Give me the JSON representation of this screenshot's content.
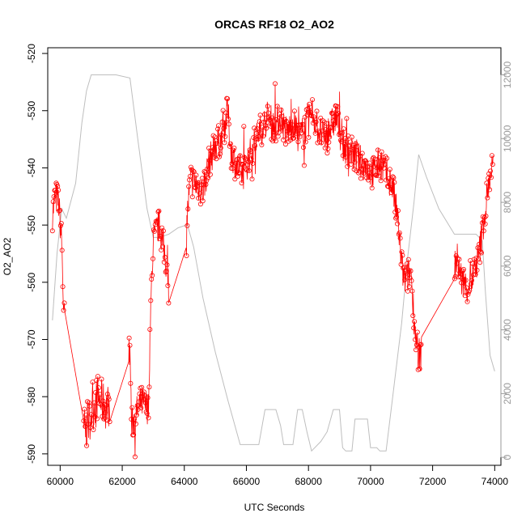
{
  "chart_data": {
    "type": "line",
    "title": "ORCAS RF18 O2_AO2",
    "xlabel": "UTC Seconds",
    "ylabel": "O2_AO2",
    "xlim": [
      59600,
      74200
    ],
    "ylim": [
      -592,
      -519
    ],
    "y2lim": [
      -250,
      12850
    ],
    "x_ticks": [
      60000,
      62000,
      64000,
      66000,
      68000,
      70000,
      72000,
      74000
    ],
    "y_ticks": [
      -590,
      -580,
      -570,
      -560,
      -550,
      -540,
      -530,
      -520
    ],
    "y2_ticks": [
      0,
      2000,
      4000,
      6000,
      8000,
      10000,
      12000
    ],
    "grid": false,
    "legend": "none",
    "colors": {
      "o2": "#ff0000",
      "altitude": "#bebebe",
      "axis": "#000000",
      "right_axis": "#999999"
    },
    "series": [
      {
        "axis": "left",
        "style": "points-and-lines",
        "anchors": [
          [
            59750,
            -548
          ],
          [
            59850,
            -545
          ],
          [
            59950,
            -546
          ],
          [
            60050,
            -553
          ],
          [
            60100,
            -563
          ],
          [
            60200,
            -572
          ],
          [
            60500,
            -581
          ],
          [
            60800,
            -586
          ],
          [
            61000,
            -583
          ],
          [
            61200,
            -580
          ],
          [
            61500,
            -582
          ],
          [
            61800,
            -579
          ],
          [
            62250,
            -572
          ],
          [
            62300,
            -585
          ],
          [
            62600,
            -581
          ],
          [
            62850,
            -582
          ],
          [
            62900,
            -567
          ],
          [
            63000,
            -553
          ],
          [
            63100,
            -551
          ],
          [
            63200,
            -550
          ],
          [
            63400,
            -556
          ],
          [
            63600,
            -566
          ],
          [
            63800,
            -564
          ],
          [
            64000,
            -558
          ],
          [
            64100,
            -548
          ],
          [
            64200,
            -542
          ],
          [
            64400,
            -543
          ],
          [
            64600,
            -544
          ],
          [
            64800,
            -539
          ],
          [
            65000,
            -536
          ],
          [
            65200,
            -535
          ],
          [
            65400,
            -530
          ],
          [
            65500,
            -537
          ],
          [
            65700,
            -540
          ],
          [
            65900,
            -541
          ],
          [
            66100,
            -538
          ],
          [
            66300,
            -535
          ],
          [
            66500,
            -533
          ],
          [
            66700,
            -531
          ],
          [
            66900,
            -533
          ],
          [
            67100,
            -531
          ],
          [
            67300,
            -534
          ],
          [
            67500,
            -532
          ],
          [
            67700,
            -535
          ],
          [
            67900,
            -533
          ],
          [
            68100,
            -530
          ],
          [
            68300,
            -533
          ],
          [
            68500,
            -535
          ],
          [
            68700,
            -533
          ],
          [
            68900,
            -531
          ],
          [
            69100,
            -536
          ],
          [
            69300,
            -537
          ],
          [
            69500,
            -538
          ],
          [
            69700,
            -539
          ],
          [
            69900,
            -540
          ],
          [
            70100,
            -541
          ],
          [
            70300,
            -539
          ],
          [
            70500,
            -541
          ],
          [
            70700,
            -543
          ],
          [
            70900,
            -550
          ],
          [
            71000,
            -557
          ],
          [
            71100,
            -560
          ],
          [
            71300,
            -558
          ],
          [
            71400,
            -566
          ],
          [
            71500,
            -572
          ],
          [
            71600,
            -573
          ],
          [
            72000,
            -566
          ],
          [
            72400,
            -559
          ],
          [
            72800,
            -556
          ],
          [
            72950,
            -560
          ],
          [
            73100,
            -561
          ],
          [
            73300,
            -559
          ],
          [
            73500,
            -555
          ],
          [
            73650,
            -549
          ],
          [
            73800,
            -543
          ],
          [
            73950,
            -539
          ]
        ]
      },
      {
        "axis": "right",
        "style": "line",
        "points": [
          [
            59750,
            4300
          ],
          [
            59900,
            6400
          ],
          [
            60050,
            7800
          ],
          [
            60200,
            7500
          ],
          [
            60500,
            8600
          ],
          [
            60700,
            10500
          ],
          [
            60850,
            11500
          ],
          [
            61000,
            12000
          ],
          [
            61800,
            12000
          ],
          [
            62250,
            11900
          ],
          [
            62500,
            10000
          ],
          [
            62800,
            7800
          ],
          [
            63000,
            6900
          ],
          [
            63200,
            6900
          ],
          [
            63500,
            7000
          ],
          [
            63800,
            7200
          ],
          [
            64100,
            7300
          ],
          [
            64300,
            6600
          ],
          [
            64600,
            5000
          ],
          [
            65000,
            3300
          ],
          [
            65400,
            1800
          ],
          [
            65800,
            400
          ],
          [
            66000,
            400
          ],
          [
            66300,
            400
          ],
          [
            66400,
            400
          ],
          [
            66600,
            1500
          ],
          [
            66950,
            1500
          ],
          [
            67100,
            1000
          ],
          [
            67200,
            400
          ],
          [
            67500,
            400
          ],
          [
            67650,
            1500
          ],
          [
            67800,
            1500
          ],
          [
            67950,
            800
          ],
          [
            68100,
            200
          ],
          [
            68400,
            500
          ],
          [
            68600,
            800
          ],
          [
            68800,
            1500
          ],
          [
            69000,
            1500
          ],
          [
            69100,
            300
          ],
          [
            69200,
            200
          ],
          [
            69400,
            200
          ],
          [
            69500,
            1200
          ],
          [
            69600,
            1200
          ],
          [
            69900,
            1200
          ],
          [
            70000,
            300
          ],
          [
            70200,
            300
          ],
          [
            70300,
            200
          ],
          [
            70500,
            200
          ],
          [
            70700,
            1800
          ],
          [
            71000,
            4200
          ],
          [
            71200,
            6300
          ],
          [
            71400,
            8000
          ],
          [
            71550,
            9500
          ],
          [
            71800,
            8800
          ],
          [
            72200,
            7800
          ],
          [
            72700,
            7000
          ],
          [
            73000,
            7000
          ],
          [
            73200,
            7000
          ],
          [
            73400,
            7000
          ],
          [
            73600,
            6800
          ],
          [
            73700,
            5200
          ],
          [
            73850,
            3200
          ],
          [
            74000,
            2700
          ]
        ]
      }
    ]
  }
}
